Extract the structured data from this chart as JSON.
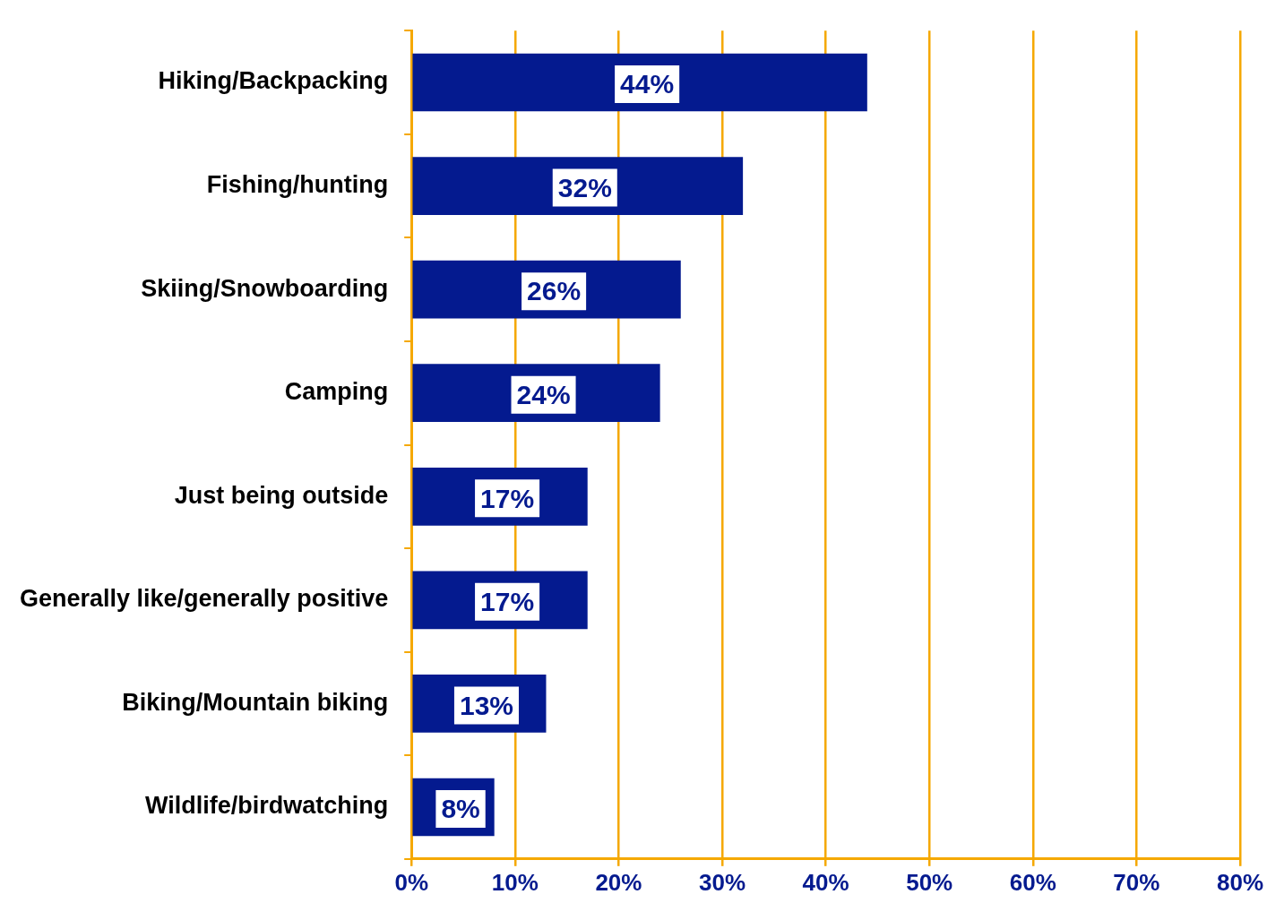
{
  "chart_data": {
    "type": "bar",
    "orientation": "horizontal",
    "categories": [
      "Hiking/Backpacking",
      "Fishing/hunting",
      "Skiing/Snowboarding",
      "Camping",
      "Just being outside",
      "Generally like/generally positive",
      "Biking/Mountain biking",
      "Wildlife/birdwatching"
    ],
    "values": [
      44,
      32,
      26,
      24,
      17,
      17,
      13,
      8
    ],
    "value_labels": [
      "44%",
      "32%",
      "26%",
      "24%",
      "17%",
      "17%",
      "13%",
      "8%"
    ],
    "color": "#041a8f",
    "xlim": [
      0,
      80
    ],
    "xticks": [
      {
        "value": 0,
        "label": "0%"
      },
      {
        "value": 10,
        "label": "10%"
      },
      {
        "value": 20,
        "label": "20%"
      },
      {
        "value": 30,
        "label": "30%"
      },
      {
        "value": 40,
        "label": "40%"
      },
      {
        "value": 50,
        "label": "50%"
      },
      {
        "value": 60,
        "label": "60%"
      },
      {
        "value": 70,
        "label": "70%"
      },
      {
        "value": 80,
        "label": "80%"
      }
    ],
    "grid": "x"
  }
}
